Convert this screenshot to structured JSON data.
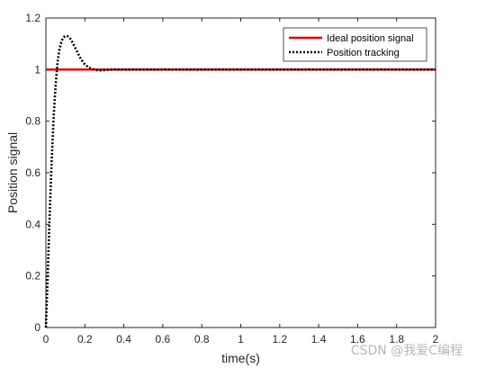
{
  "chart_data": {
    "type": "line",
    "title": "",
    "xlabel": "time(s)",
    "ylabel": "Position signal",
    "xlim": [
      0,
      2
    ],
    "ylim": [
      0,
      1.2
    ],
    "xticks": [
      "0",
      "0.2",
      "0.4",
      "0.6",
      "0.8",
      "1",
      "1.2",
      "1.4",
      "1.6",
      "1.8",
      "2"
    ],
    "yticks": [
      "0",
      "0.2",
      "0.4",
      "0.6",
      "0.8",
      "1",
      "1.2"
    ],
    "legend_position": "top-right",
    "grid": false,
    "series": [
      {
        "name": "Ideal position signal",
        "color": "#e00000",
        "style": "solid",
        "x": [
          0,
          2
        ],
        "y": [
          1,
          1
        ]
      },
      {
        "name": "Position tracking",
        "color": "#000000",
        "style": "dotted",
        "x": [
          0,
          0.01,
          0.02,
          0.03,
          0.04,
          0.05,
          0.06,
          0.07,
          0.08,
          0.09,
          0.1,
          0.11,
          0.12,
          0.13,
          0.14,
          0.15,
          0.16,
          0.17,
          0.18,
          0.19,
          0.2,
          0.22,
          0.24,
          0.26,
          0.28,
          0.3,
          0.32,
          0.34,
          0.36,
          0.4,
          0.5,
          0.6,
          0.8,
          1.0,
          1.2,
          1.4,
          1.6,
          1.8,
          2.0
        ],
        "y": [
          0,
          0.22,
          0.45,
          0.65,
          0.82,
          0.94,
          1.03,
          1.08,
          1.11,
          1.125,
          1.13,
          1.13,
          1.125,
          1.115,
          1.1,
          1.085,
          1.07,
          1.055,
          1.04,
          1.03,
          1.02,
          1.008,
          1.002,
          0.998,
          0.997,
          0.998,
          0.999,
          1.0,
          1.0,
          1.0,
          1.0,
          1.0,
          1.0,
          1.0,
          1.0,
          1.0,
          1.0,
          1.0,
          1.0
        ]
      }
    ]
  },
  "watermark": "CSDN @我爱C编程"
}
